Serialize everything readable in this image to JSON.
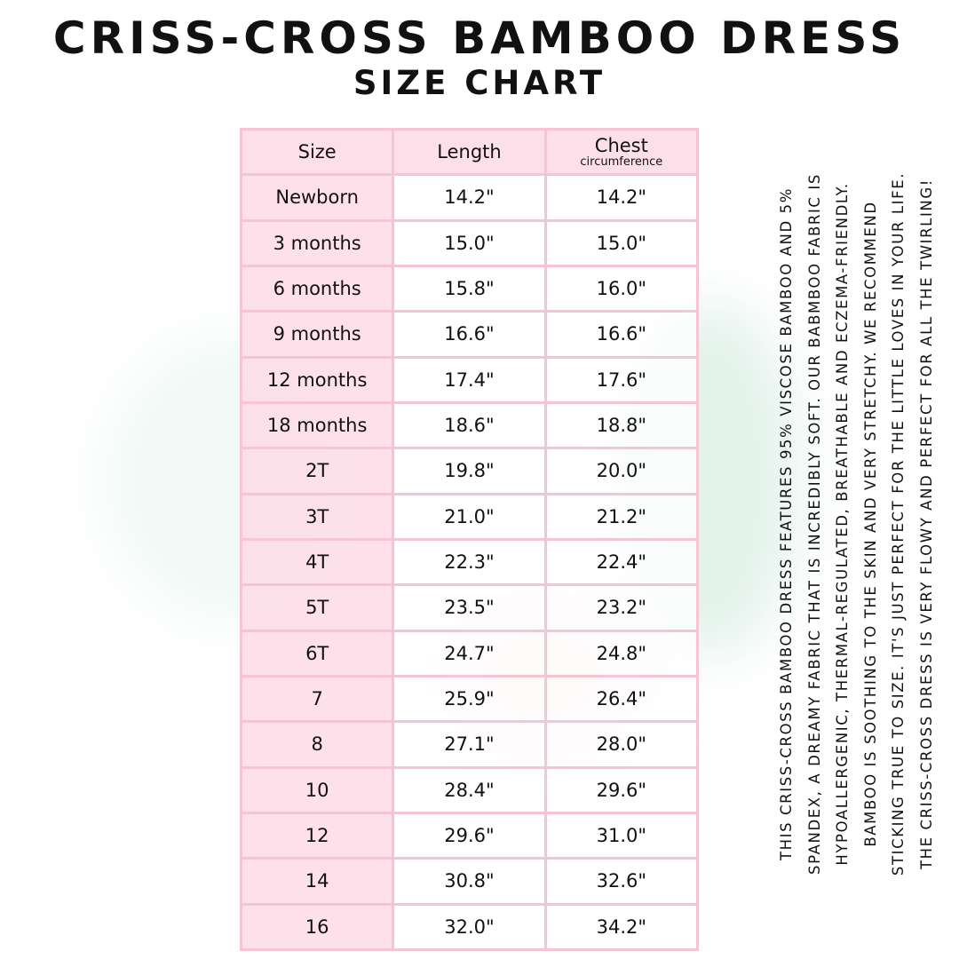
{
  "title": "CRISS-CROSS BAMBOO DRESS",
  "subtitle": "SIZE CHART",
  "table": {
    "headers": {
      "size": "Size",
      "length": "Length",
      "chest": "Chest",
      "chest_sub": "circumference"
    },
    "rows": [
      [
        "Newborn",
        "14.2\"",
        "14.2\""
      ],
      [
        "3 months",
        "15.0\"",
        "15.0\""
      ],
      [
        "6 months",
        "15.8\"",
        "16.0\""
      ],
      [
        "9 months",
        "16.6\"",
        "16.6\""
      ],
      [
        "12 months",
        "17.4\"",
        "17.6\""
      ],
      [
        "18 months",
        "18.6\"",
        "18.8\""
      ],
      [
        "2T",
        "19.8\"",
        "20.0\""
      ],
      [
        "3T",
        "21.0\"",
        "21.2\""
      ],
      [
        "4T",
        "22.3\"",
        "22.4\""
      ],
      [
        "5T",
        "23.5\"",
        "23.2\""
      ],
      [
        "6T",
        "24.7\"",
        "24.8\""
      ],
      [
        "7",
        "25.9\"",
        "26.4\""
      ],
      [
        "8",
        "27.1\"",
        "28.0\""
      ],
      [
        "10",
        "28.4\"",
        "29.6\""
      ],
      [
        "12",
        "29.6\"",
        "31.0\""
      ],
      [
        "14",
        "30.8\"",
        "32.6\""
      ],
      [
        "16",
        "32.0\"",
        "34.2\""
      ]
    ]
  },
  "description": [
    "THIS CRISS-CROSS BAMBOO DRESS FEATURES 95% VISCOSE BAMBOO AND 5%",
    "SPANDEX, A DREAMY FABRIC THAT IS INCREDIBLY SOFT. OUR BABMBOO FABRIC IS",
    "HYPOALLERGENIC, THERMAL-REGULATED,  BREATHABLE AND ECZEMA-FRIENDLY.",
    "BAMBOO IS SOOTHING TO THE SKIN AND VERY STRETCHY. WE RECOMMEND",
    "STICKING TRUE TO SIZE. IT'S JUST PERFECT FOR THE LITTLE LOVES IN YOUR LIFE.",
    "THE CRISS-CROSS DRESS IS VERY FLOWY AND PERFECT FOR ALL THE TWIRLING!"
  ],
  "colors": {
    "border": "#f6c4d3",
    "header_fill": "#fddde8"
  }
}
